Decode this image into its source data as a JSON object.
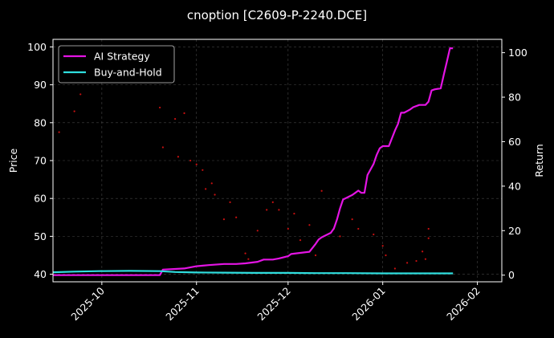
{
  "chart_data": {
    "type": "line",
    "title": "cnoption [C2609-P-2240.DCE]",
    "ylabel": "Price",
    "y2label": "Return",
    "ylim": [
      38,
      102
    ],
    "y2lim": [
      -3,
      106
    ],
    "xlim": [
      "2025-09-15",
      "2026-02-09"
    ],
    "yticks": [
      40,
      50,
      60,
      70,
      80,
      90,
      100
    ],
    "y2ticks": [
      0,
      20,
      40,
      60,
      80,
      100
    ],
    "xticks": [
      {
        "date": "2025-10-01",
        "label": "2025-10"
      },
      {
        "date": "2025-11-01",
        "label": "2025-11"
      },
      {
        "date": "2025-12-01",
        "label": "2025-12"
      },
      {
        "date": "2026-01-01",
        "label": "2026-01"
      },
      {
        "date": "2026-02-01",
        "label": "2026-02"
      }
    ],
    "grid": true,
    "legend_position": "top-left",
    "colors": {
      "ai": "#e414e4",
      "bh": "#2fdede",
      "price": "#c81010",
      "background": "#000000",
      "grid": "#444444"
    },
    "price_points": [
      [
        "2025-09-17",
        77.5
      ],
      [
        "2025-09-22",
        83
      ],
      [
        "2025-09-24",
        87.5
      ],
      [
        "2025-10-20",
        84
      ],
      [
        "2025-10-21",
        73.5
      ],
      [
        "2025-10-25",
        81
      ],
      [
        "2025-10-26",
        71
      ],
      [
        "2025-10-28",
        82.5
      ],
      [
        "2025-10-30",
        70
      ],
      [
        "2025-11-01",
        69
      ],
      [
        "2025-11-03",
        67.5
      ],
      [
        "2025-11-04",
        62.5
      ],
      [
        "2025-11-06",
        64
      ],
      [
        "2025-11-07",
        61
      ],
      [
        "2025-11-10",
        54.5
      ],
      [
        "2025-11-12",
        59
      ],
      [
        "2025-11-14",
        55
      ],
      [
        "2025-11-17",
        45.5
      ],
      [
        "2025-11-18",
        44
      ],
      [
        "2025-11-21",
        51.5
      ],
      [
        "2025-11-24",
        57
      ],
      [
        "2025-11-26",
        59
      ],
      [
        "2025-11-28",
        57
      ],
      [
        "2025-12-01",
        52
      ],
      [
        "2025-12-03",
        56
      ],
      [
        "2025-12-05",
        49
      ],
      [
        "2025-12-08",
        53
      ],
      [
        "2025-12-10",
        45
      ],
      [
        "2025-12-12",
        62
      ],
      [
        "2025-12-16",
        52
      ],
      [
        "2025-12-18",
        50
      ],
      [
        "2025-12-22",
        54.5
      ],
      [
        "2025-12-24",
        52
      ],
      [
        "2025-12-29",
        50.5
      ],
      [
        "2026-01-01",
        47.5
      ],
      [
        "2026-01-02",
        45
      ],
      [
        "2026-01-05",
        41.5
      ],
      [
        "2026-01-09",
        43
      ],
      [
        "2026-01-12",
        43.5
      ],
      [
        "2026-01-14",
        46
      ],
      [
        "2026-01-15",
        44
      ],
      [
        "2026-01-16",
        52
      ],
      [
        "2026-01-16",
        49.5
      ]
    ],
    "series": [
      {
        "name": "AI Strategy",
        "axis": "right",
        "points": [
          [
            "2025-09-15",
            0
          ],
          [
            "2025-10-20",
            0
          ],
          [
            "2025-10-21",
            2.5
          ],
          [
            "2025-10-28",
            3
          ],
          [
            "2025-11-01",
            4
          ],
          [
            "2025-11-05",
            4.5
          ],
          [
            "2025-11-10",
            5
          ],
          [
            "2025-11-14",
            5
          ],
          [
            "2025-11-17",
            5.3
          ],
          [
            "2025-11-21",
            6
          ],
          [
            "2025-11-23",
            7
          ],
          [
            "2025-11-26",
            7
          ],
          [
            "2025-11-28",
            7.5
          ],
          [
            "2025-12-01",
            8.5
          ],
          [
            "2025-12-02",
            9.5
          ],
          [
            "2025-12-08",
            10.5
          ],
          [
            "2025-12-10",
            14
          ],
          [
            "2025-12-11",
            16
          ],
          [
            "2025-12-12",
            17
          ],
          [
            "2025-12-15",
            19
          ],
          [
            "2025-12-16",
            21
          ],
          [
            "2025-12-17",
            25
          ],
          [
            "2025-12-18",
            30
          ],
          [
            "2025-12-19",
            34
          ],
          [
            "2025-12-22",
            36
          ],
          [
            "2025-12-23",
            37
          ],
          [
            "2025-12-24",
            38
          ],
          [
            "2025-12-25",
            37
          ],
          [
            "2025-12-26",
            37
          ],
          [
            "2025-12-27",
            45
          ],
          [
            "2025-12-29",
            50
          ],
          [
            "2025-12-30",
            54
          ],
          [
            "2025-12-31",
            57
          ],
          [
            "2026-01-01",
            58
          ],
          [
            "2026-01-03",
            58
          ],
          [
            "2026-01-05",
            65
          ],
          [
            "2026-01-06",
            68
          ],
          [
            "2026-01-07",
            73
          ],
          [
            "2026-01-08",
            73
          ],
          [
            "2026-01-10",
            74.5
          ],
          [
            "2026-01-11",
            75.5
          ],
          [
            "2026-01-13",
            76.5
          ],
          [
            "2026-01-15",
            76.5
          ],
          [
            "2026-01-16",
            78
          ],
          [
            "2026-01-17",
            83
          ],
          [
            "2026-01-18",
            83.5
          ],
          [
            "2026-01-20",
            84
          ],
          [
            "2026-01-21",
            90
          ],
          [
            "2026-01-22",
            96
          ],
          [
            "2026-01-23",
            102
          ],
          [
            "2026-01-24",
            102
          ]
        ]
      },
      {
        "name": "Buy-and-Hold",
        "axis": "right",
        "points": [
          [
            "2025-09-15",
            1.3
          ],
          [
            "2025-09-22",
            1.6
          ],
          [
            "2025-09-30",
            1.8
          ],
          [
            "2025-10-10",
            1.9
          ],
          [
            "2025-10-20",
            1.8
          ],
          [
            "2025-10-25",
            1.4
          ],
          [
            "2025-11-01",
            1.2
          ],
          [
            "2025-11-10",
            1.1
          ],
          [
            "2025-11-20",
            1.0
          ],
          [
            "2025-12-01",
            1.0
          ],
          [
            "2025-12-10",
            0.9
          ],
          [
            "2025-12-20",
            0.9
          ],
          [
            "2026-01-01",
            0.8
          ],
          [
            "2026-01-10",
            0.8
          ],
          [
            "2026-01-24",
            0.8
          ]
        ]
      }
    ]
  }
}
